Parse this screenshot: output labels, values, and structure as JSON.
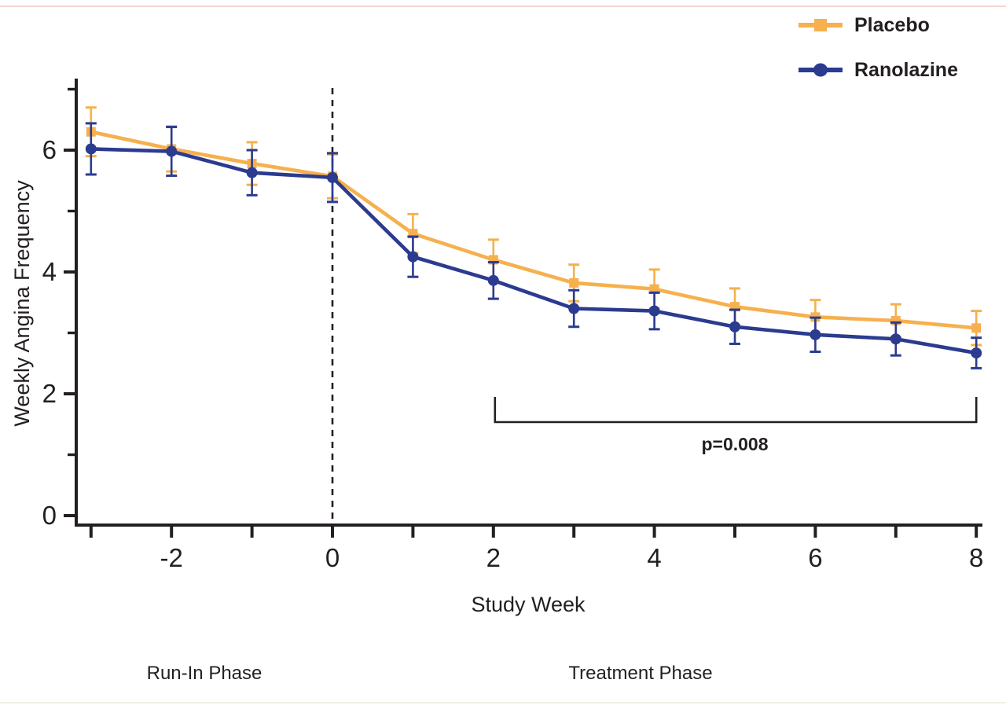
{
  "page": {
    "background": "#ffffff",
    "accent_red": "#CF202A",
    "text_color": "#231F20"
  },
  "legend": {
    "note": "built from chart_data.series"
  },
  "y_axis": {
    "title": "Weekly Angina Frequency",
    "major_ticks": [
      0,
      2,
      4,
      6
    ],
    "minor_ticks": [
      1,
      3,
      5,
      7
    ],
    "tick_labels": [
      "0",
      "2",
      "4",
      "6"
    ]
  },
  "x_axis": {
    "title": "Study Week",
    "ticks": [
      -3,
      -2,
      -1,
      0,
      1,
      2,
      3,
      4,
      5,
      6,
      7,
      8
    ],
    "labeled_ticks": [
      -2,
      0,
      2,
      4,
      6,
      8
    ],
    "tick_labels": [
      "-2",
      "0",
      "2",
      "4",
      "6",
      "8"
    ]
  },
  "annotations": {
    "p_value": "p=0.008",
    "bracket_from_week": 2,
    "bracket_to_week": 8,
    "baseline_week": 0,
    "run_in_label": "Run-In Phase",
    "treatment_label": "Treatment Phase"
  },
  "chart_data": {
    "type": "line",
    "title": "",
    "xlabel": "Study Week",
    "ylabel": "Weekly Angina Frequency",
    "x": [
      -3,
      -2,
      -1,
      0,
      1,
      2,
      3,
      4,
      5,
      6,
      7,
      8
    ],
    "xlim": [
      -3.2,
      8.3
    ],
    "ylim": [
      0,
      7.2
    ],
    "grid": false,
    "legend_position": "top-right",
    "series": [
      {
        "name": "Placebo",
        "color": "#F6B04E",
        "marker": "square",
        "values": [
          6.3,
          6.02,
          5.78,
          5.57,
          4.63,
          4.2,
          3.82,
          3.72,
          3.43,
          3.26,
          3.2,
          3.08
        ],
        "errors": [
          0.4,
          0.37,
          0.35,
          0.36,
          0.32,
          0.33,
          0.3,
          0.32,
          0.3,
          0.28,
          0.27,
          0.28
        ]
      },
      {
        "name": "Ranolazine",
        "color": "#2B3B8F",
        "marker": "circle",
        "values": [
          6.02,
          5.98,
          5.63,
          5.55,
          4.25,
          3.86,
          3.4,
          3.36,
          3.1,
          2.97,
          2.9,
          2.67
        ],
        "errors": [
          0.42,
          0.4,
          0.37,
          0.4,
          0.33,
          0.3,
          0.3,
          0.3,
          0.28,
          0.28,
          0.27,
          0.25
        ]
      }
    ]
  }
}
